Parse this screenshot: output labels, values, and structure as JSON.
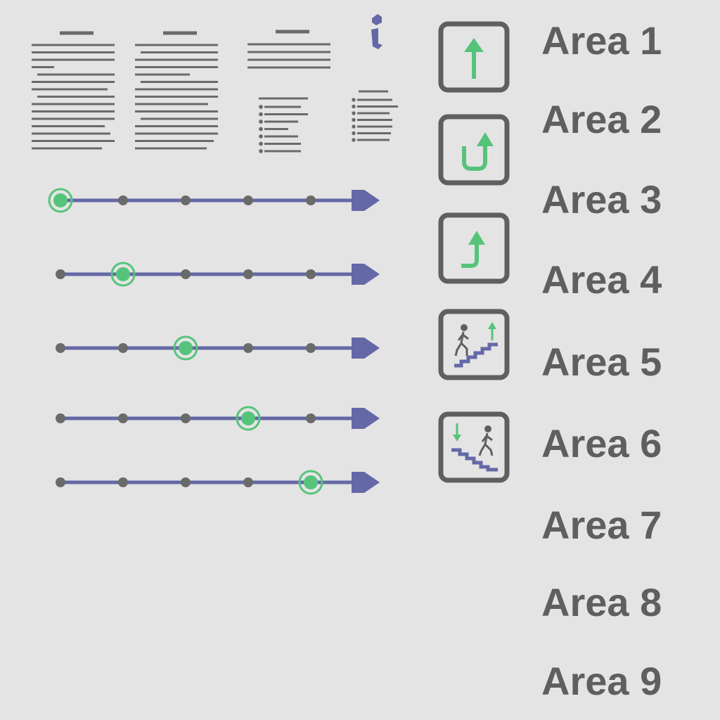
{
  "areas": [
    {
      "label": "Area 1"
    },
    {
      "label": "Area 2"
    },
    {
      "label": "Area 3"
    },
    {
      "label": "Area 4"
    },
    {
      "label": "Area 5"
    },
    {
      "label": "Area 6"
    },
    {
      "label": "Area 7"
    },
    {
      "label": "Area 8"
    },
    {
      "label": "Area 9"
    }
  ],
  "icons": [
    {
      "name": "document-icon"
    },
    {
      "name": "document-icon"
    },
    {
      "name": "list-document-icon"
    },
    {
      "name": "info-list-icon"
    }
  ],
  "progress_tracks": [
    {
      "stops": 5,
      "current_stop": 1
    },
    {
      "stops": 5,
      "current_stop": 2
    },
    {
      "stops": 5,
      "current_stop": 3
    },
    {
      "stops": 5,
      "current_stop": 4
    },
    {
      "stops": 5,
      "current_stop": 5
    }
  ],
  "direction_signs": [
    {
      "name": "arrow-up-icon"
    },
    {
      "name": "u-turn-icon"
    },
    {
      "name": "turn-right-up-icon"
    },
    {
      "name": "stairs-up-icon"
    },
    {
      "name": "stairs-down-icon"
    }
  ],
  "colors": {
    "background": "#e4e4e4",
    "gray": "#5f5f5f",
    "line_gray": "#6a6a6a",
    "track": "#6468a6",
    "accent_green": "#55c47a"
  }
}
